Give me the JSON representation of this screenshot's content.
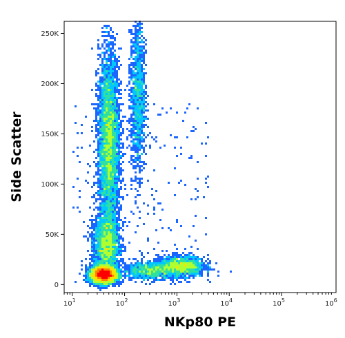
{
  "chart_data": {
    "type": "scatter",
    "plot_style": "density-colored flow cytometry dot plot",
    "title": "",
    "xlabel": "NKp80 PE",
    "ylabel": "Side Scatter",
    "x_scale": "log",
    "xlim": [
      7,
      1100000
    ],
    "ylim": [
      -8000,
      262000
    ],
    "x_ticks": [
      {
        "value": 10,
        "base": "10",
        "exp": "1"
      },
      {
        "value": 100,
        "base": "10",
        "exp": "2"
      },
      {
        "value": 1000,
        "base": "10",
        "exp": "3"
      },
      {
        "value": 10000,
        "base": "10",
        "exp": "4"
      },
      {
        "value": 100000,
        "base": "10",
        "exp": "5"
      },
      {
        "value": 1000000,
        "base": "10",
        "exp": "6"
      }
    ],
    "y_ticks": [
      {
        "value": 0,
        "label": "0"
      },
      {
        "value": 50000,
        "label": "50K"
      },
      {
        "value": 100000,
        "label": "100K"
      },
      {
        "value": 150000,
        "label": "150K"
      },
      {
        "value": 200000,
        "label": "200K"
      },
      {
        "value": 250000,
        "label": "250K"
      }
    ],
    "grid": false,
    "density_colors": [
      "#0000cc",
      "#1a66ff",
      "#00c8ff",
      "#30e0a0",
      "#b0ff30",
      "#ffe000",
      "#ff8000",
      "#ff0000"
    ],
    "populations": [
      {
        "x_center": 40,
        "y_center": 10000,
        "x_spread_log": 0.12,
        "y_spread": 4000,
        "weight": 0.32
      },
      {
        "x_center": 45,
        "y_center": 40000,
        "x_spread_log": 0.12,
        "y_spread": 15000,
        "weight": 0.14
      },
      {
        "x_center": 50,
        "y_center": 140000,
        "x_spread_log": 0.1,
        "y_spread": 45000,
        "weight": 0.3
      },
      {
        "x_center": 180,
        "y_center": 190000,
        "x_spread_log": 0.07,
        "y_spread": 40000,
        "weight": 0.08
      },
      {
        "x_center": 1200,
        "y_center": 18000,
        "x_spread_log": 0.22,
        "y_spread": 5000,
        "weight": 0.1
      },
      {
        "x_center": 300,
        "y_center": 14000,
        "x_spread_log": 0.25,
        "y_spread": 4000,
        "weight": 0.06
      }
    ]
  }
}
